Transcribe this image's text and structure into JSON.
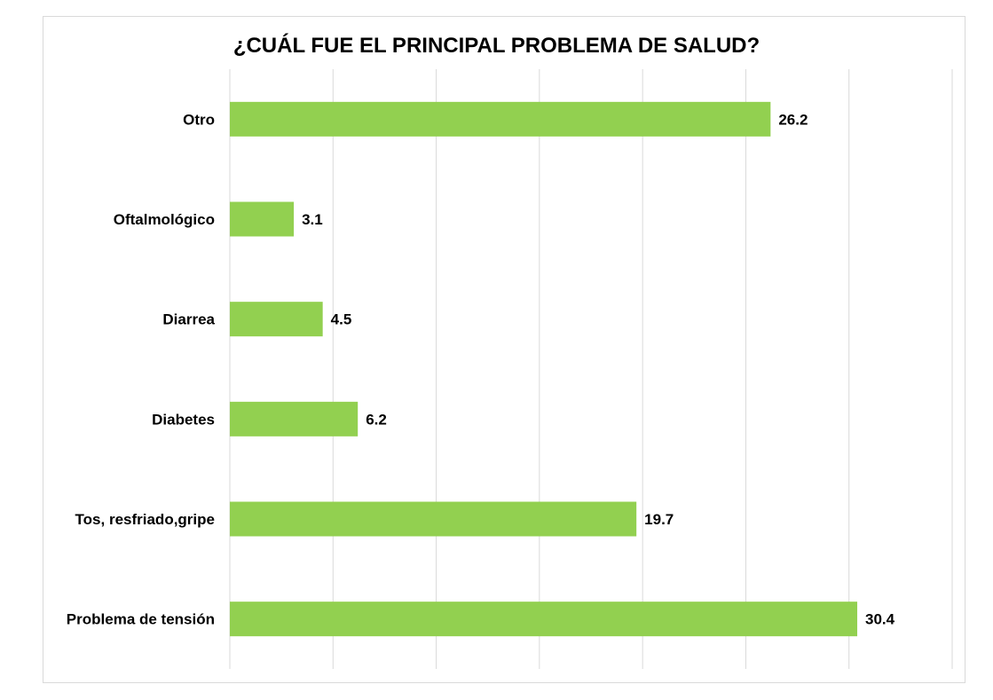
{
  "chart_data": {
    "type": "bar",
    "orientation": "horizontal",
    "title": "¿CUÁL FUE EL PRINCIPAL PROBLEMA DE SALUD?",
    "categories": [
      "Otro",
      "Oftalmológico",
      "Diarrea",
      "Diabetes",
      "Tos, resfriado,gripe",
      "Problema de tensión"
    ],
    "values": [
      26.2,
      3.1,
      4.5,
      6.2,
      19.7,
      30.4
    ],
    "data_labels": [
      "26.2",
      "3.1",
      "4.5",
      "6.2",
      "19.7",
      "30.4"
    ],
    "xlim": [
      0,
      35
    ],
    "grid": "vertical",
    "legend": "none",
    "colors": {
      "bar": "#92d050",
      "grid": "#d9d9d9",
      "text": "#000000"
    }
  }
}
